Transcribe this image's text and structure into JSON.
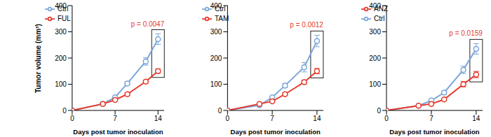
{
  "chart_data": [
    {
      "type": "line",
      "x": [
        0,
        5,
        7,
        9,
        12,
        14
      ],
      "xlim": [
        0,
        15
      ],
      "xticks": [
        0,
        7,
        14
      ],
      "ylim": [
        0,
        400
      ],
      "yticks": [
        0,
        100,
        200,
        300,
        400
      ],
      "x_label": "Days post tumor inoculation",
      "y_label": "Tumor volume (mm³)",
      "annotation": "p = 0.0047",
      "legend": "upper left",
      "marker": "circle",
      "series": [
        {
          "name": "Ctrl",
          "color": "#7ba7d9",
          "values": [
            0,
            25,
            50,
            103,
            187,
            272
          ],
          "errors": [
            0,
            3,
            5,
            6,
            14,
            20
          ]
        },
        {
          "name": "FUL",
          "color": "#e53a2d",
          "values": [
            0,
            25,
            40,
            62,
            110,
            150
          ],
          "errors": [
            0,
            3,
            4,
            5,
            6,
            8
          ]
        }
      ]
    },
    {
      "type": "line",
      "x": [
        0,
        5,
        7,
        9,
        12,
        14
      ],
      "xlim": [
        0,
        15
      ],
      "xticks": [
        0,
        7,
        14
      ],
      "ylim": [
        0,
        400
      ],
      "yticks": [
        0,
        100,
        200,
        300,
        400
      ],
      "x_label": "Days post tumor inoculation",
      "annotation": "p = 0.0012",
      "legend": "upper left",
      "marker": "circle",
      "series": [
        {
          "name": "Ctrl",
          "color": "#7ba7d9",
          "values": [
            0,
            20,
            50,
            95,
            165,
            265
          ],
          "errors": [
            0,
            3,
            5,
            8,
            18,
            22
          ]
        },
        {
          "name": "TAM",
          "color": "#e53a2d",
          "values": [
            0,
            25,
            35,
            62,
            108,
            150
          ],
          "errors": [
            0,
            3,
            4,
            5,
            8,
            10
          ]
        }
      ]
    },
    {
      "type": "line",
      "x": [
        0,
        5,
        7,
        9,
        12,
        14
      ],
      "xlim": [
        0,
        15
      ],
      "xticks": [
        0,
        7,
        14
      ],
      "ylim": [
        0,
        400
      ],
      "yticks": [
        0,
        100,
        200,
        300,
        400
      ],
      "x_label": "Days post tumor inoculation",
      "annotation": "p = 0.0159",
      "legend": "upper left",
      "marker": "circle",
      "series": [
        {
          "name": "Ctrl",
          "color": "#7ba7d9",
          "values": [
            0,
            18,
            38,
            68,
            155,
            235
          ],
          "errors": [
            0,
            2,
            5,
            6,
            14,
            20
          ]
        },
        {
          "name": "ANZ",
          "color": "#e53a2d",
          "values": [
            0,
            18,
            25,
            42,
            100,
            137
          ],
          "errors": [
            0,
            2,
            3,
            4,
            10,
            12
          ]
        }
      ]
    }
  ]
}
